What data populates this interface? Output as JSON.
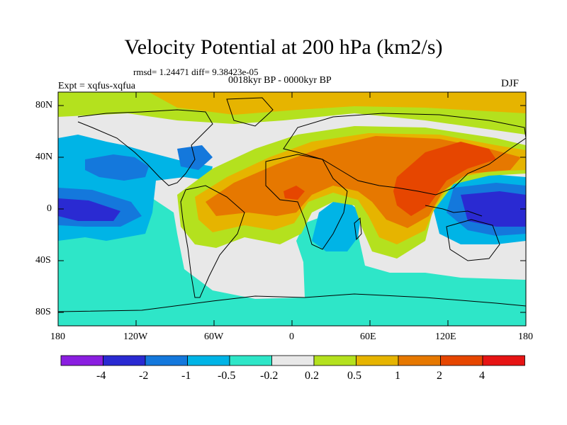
{
  "header": {
    "title": "Velocity Potential at 200 hPa (km2/s)",
    "stats": "rmsd= 1.24471 diff= 9.38423e-05",
    "period": "0018kyr BP - 0000kyr BP",
    "experiment": "Expt = xqfus-xqfua",
    "season": "DJF"
  },
  "axes": {
    "y_ticks": [
      "80N",
      "40N",
      "0",
      "40S",
      "80S"
    ],
    "x_ticks": [
      "180",
      "120W",
      "60W",
      "0",
      "60E",
      "120E",
      "180"
    ]
  },
  "colorbar": {
    "colors": [
      "#8a1ee0",
      "#2a2ad2",
      "#1478dc",
      "#00b4e6",
      "#2ee6c8",
      "#e8e8e8",
      "#b4e11e",
      "#e6b400",
      "#e67800",
      "#e64600",
      "#e61414"
    ],
    "labels": [
      "-4",
      "-2",
      "-1",
      "-0.5",
      "-0.2",
      "0.2",
      "0.5",
      "1",
      "2",
      "4"
    ]
  },
  "map": {
    "ocean_land_base_color": "#e8e8e8",
    "coastline_color": "#000000"
  }
}
